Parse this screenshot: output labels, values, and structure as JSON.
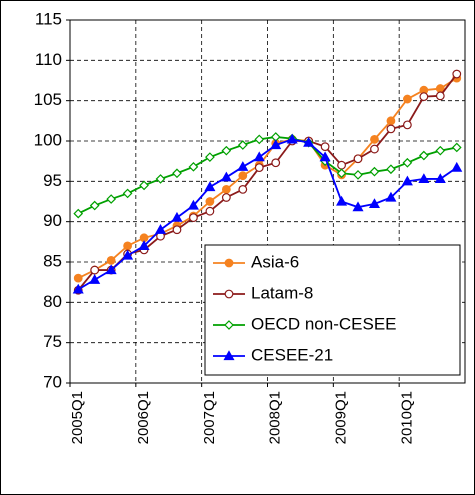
{
  "chart_data": {
    "type": "line",
    "categories": [
      "2005Q1",
      null,
      null,
      null,
      "2006Q1",
      null,
      null,
      null,
      "2007Q1",
      null,
      null,
      null,
      "2008Q1",
      null,
      null,
      null,
      "2009Q1",
      null,
      null,
      null,
      "2010Q1",
      null,
      null,
      null
    ],
    "series": [
      {
        "name": "Asia-6",
        "color": "#f58220",
        "marker": "circle",
        "marker_filled": true,
        "values": [
          83,
          84,
          85.2,
          87,
          88,
          88.5,
          89.5,
          90.7,
          92.5,
          94,
          95.7,
          97,
          99.7,
          100.2,
          100,
          97,
          95.8,
          97.8,
          100.2,
          102.5,
          105.2,
          106.3,
          106.5,
          107.8
        ]
      },
      {
        "name": "Latam-8",
        "color": "#8b1a1a",
        "marker": "circle",
        "marker_filled": false,
        "values": [
          81.5,
          84,
          84,
          86,
          86.5,
          88.2,
          89,
          90.5,
          91.3,
          93,
          94,
          96.7,
          97.3,
          100,
          100,
          99.3,
          97,
          97.8,
          99,
          101.5,
          102,
          105.5,
          105.6,
          108.3
        ]
      },
      {
        "name": "OECD non-CESEE",
        "color": "#00a000",
        "marker": "diamond",
        "marker_filled": false,
        "values": [
          91,
          92,
          92.8,
          93.5,
          94.5,
          95.3,
          96,
          96.8,
          98,
          98.8,
          99.5,
          100.2,
          100.5,
          100.3,
          99.8,
          97.5,
          96,
          95.8,
          96.2,
          96.5,
          97.3,
          98.2,
          98.8,
          99.2
        ]
      },
      {
        "name": "CESEE-21",
        "color": "#0000ff",
        "marker": "triangle",
        "marker_filled": true,
        "values": [
          81.6,
          82.8,
          84,
          85.8,
          87,
          89,
          90.5,
          92,
          94.3,
          95.5,
          96.8,
          98,
          99.5,
          100.2,
          99.8,
          98,
          92.5,
          91.8,
          92.2,
          93,
          95,
          95.3,
          95.3,
          96.7
        ]
      }
    ],
    "ylim": [
      70,
      115
    ],
    "yticks": [
      70,
      75,
      80,
      85,
      90,
      95,
      100,
      105,
      110,
      115
    ],
    "grid": true,
    "legend": "lower right"
  }
}
